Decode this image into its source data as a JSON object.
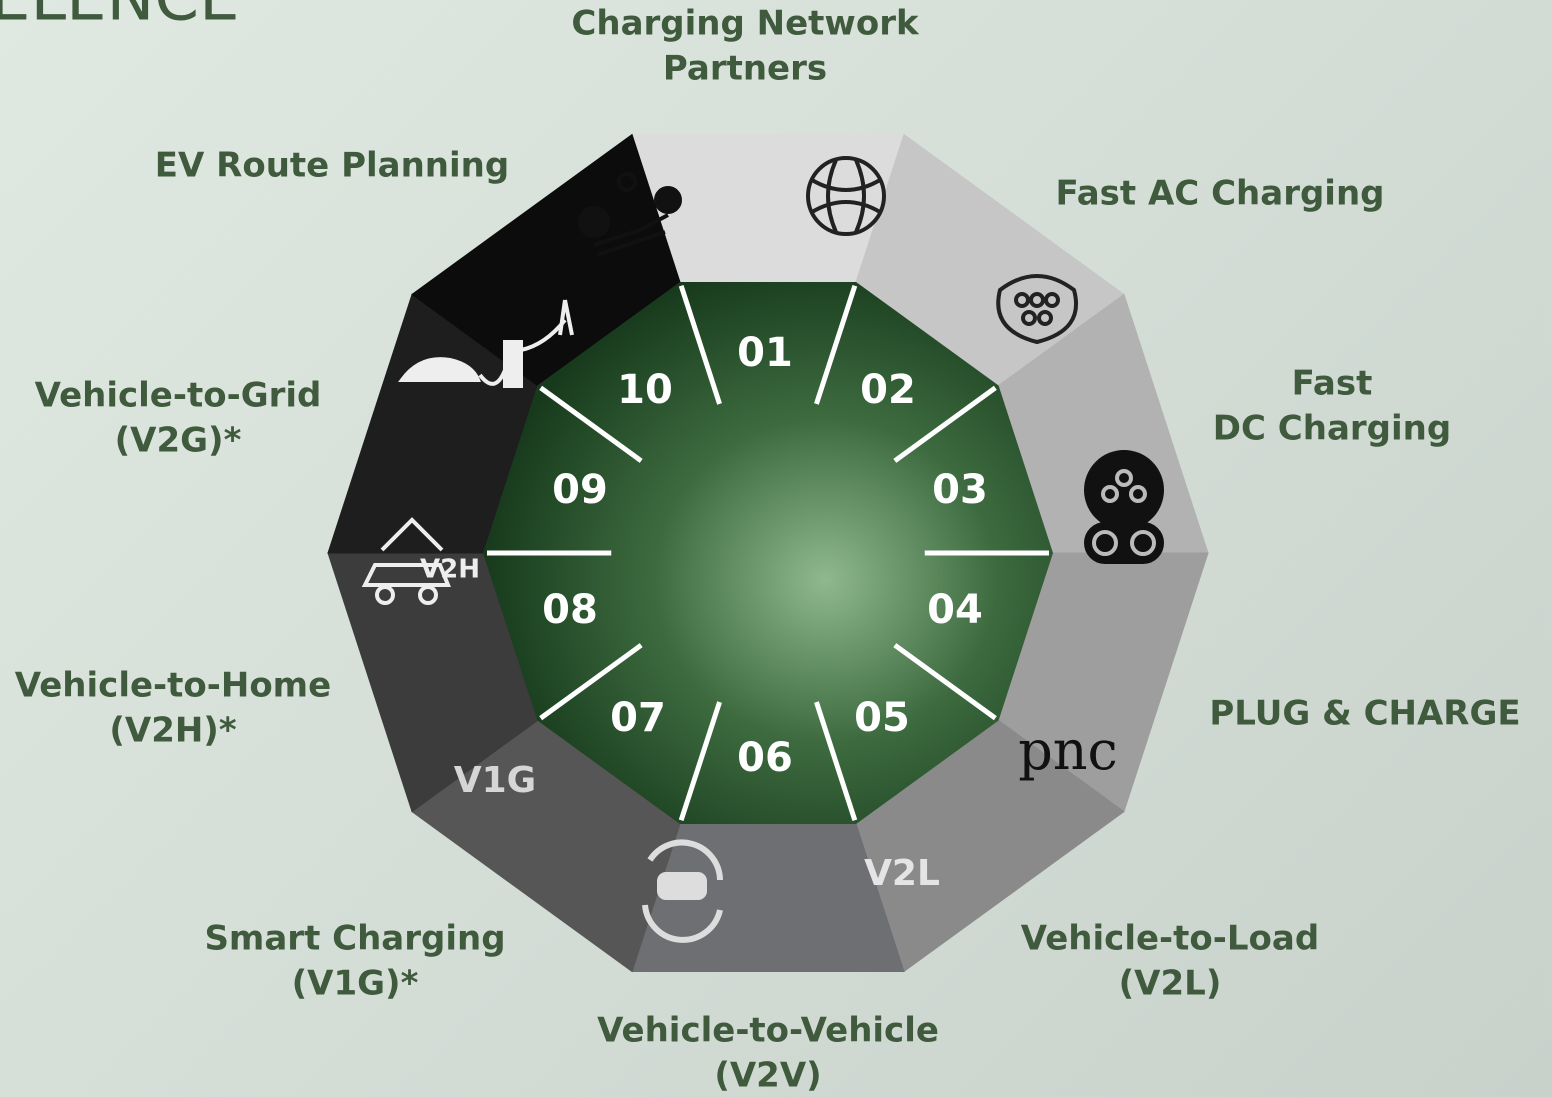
{
  "header": {
    "logo_fragment": "ELENCE"
  },
  "segments": [
    {
      "number": "01",
      "title": [
        "Charging Network",
        "Partners"
      ]
    },
    {
      "number": "02",
      "title": [
        "Fast AC Charging"
      ]
    },
    {
      "number": "03",
      "title": [
        "Fast",
        "DC Charging"
      ]
    },
    {
      "number": "04",
      "title": [
        "PLUG & CHARGE"
      ]
    },
    {
      "number": "05",
      "title": [
        "Vehicle-to-Load",
        "(V2L)"
      ]
    },
    {
      "number": "06",
      "title": [
        "Vehicle-to-Vehicle",
        "(V2V)"
      ]
    },
    {
      "number": "07",
      "title": [
        "Smart Charging",
        "(V1G)*"
      ]
    },
    {
      "number": "08",
      "title": [
        "Vehicle-to-Home",
        "(V2H)*"
      ]
    },
    {
      "number": "09",
      "title": [
        "Vehicle-to-Grid",
        "(V2G)*"
      ]
    },
    {
      "number": "10",
      "title": [
        "EV Route Planning"
      ]
    }
  ],
  "icon_labels": {
    "v2h": "V2H",
    "v1g": "V1G",
    "v2l": "V2L",
    "pnc": "pnc"
  }
}
